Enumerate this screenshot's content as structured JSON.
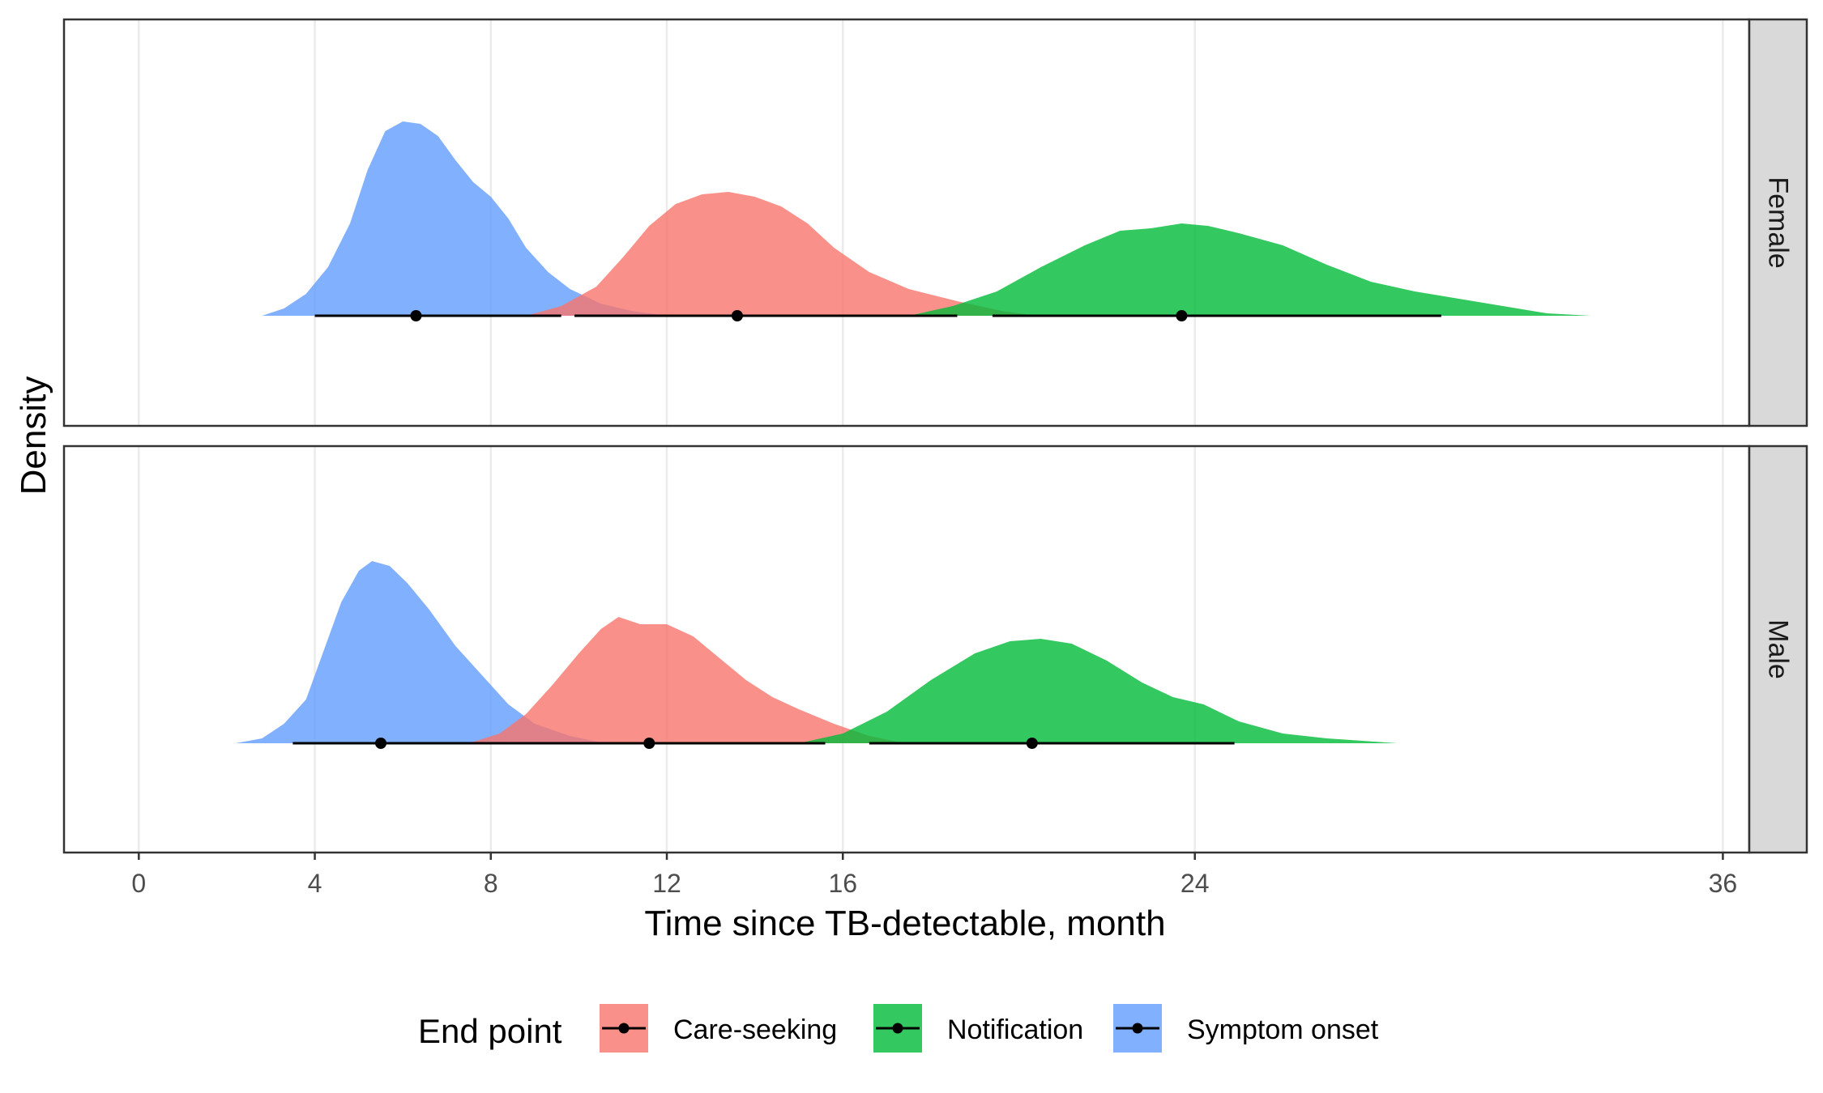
{
  "chart_data": {
    "type": "area",
    "xlabel": "Time since TB-detectable, month",
    "ylabel": "Density",
    "x_ticks": [
      0,
      4,
      8,
      12,
      16,
      24,
      36
    ],
    "xlim": [
      -1.7,
      36.6
    ],
    "grid": true,
    "legend": {
      "title": "End point",
      "placement": "bottom",
      "entries": [
        "Care-seeking",
        "Notification",
        "Symptom onset"
      ]
    },
    "colors": {
      "Care-seeking": "#F8766D",
      "Notification": "#00BA38",
      "Symptom onset": "#619CFF"
    },
    "panels": [
      {
        "facet": "Female",
        "series": [
          {
            "name": "Symptom onset",
            "density": [
              [
                2.8,
                0.0
              ],
              [
                3.3,
                0.03
              ],
              [
                3.8,
                0.09
              ],
              [
                4.3,
                0.2
              ],
              [
                4.8,
                0.38
              ],
              [
                5.2,
                0.6
              ],
              [
                5.6,
                0.76
              ],
              [
                6.0,
                0.8
              ],
              [
                6.4,
                0.79
              ],
              [
                6.8,
                0.74
              ],
              [
                7.2,
                0.64
              ],
              [
                7.6,
                0.55
              ],
              [
                8.0,
                0.49
              ],
              [
                8.4,
                0.4
              ],
              [
                8.8,
                0.28
              ],
              [
                9.3,
                0.18
              ],
              [
                9.8,
                0.11
              ],
              [
                10.5,
                0.05
              ],
              [
                11.2,
                0.02
              ],
              [
                12.0,
                0.0
              ]
            ],
            "median": 6.3,
            "interval": [
              4.0,
              9.6
            ]
          },
          {
            "name": "Care-seeking",
            "density": [
              [
                8.8,
                0.0
              ],
              [
                9.6,
                0.04
              ],
              [
                10.4,
                0.12
              ],
              [
                11.0,
                0.24
              ],
              [
                11.6,
                0.37
              ],
              [
                12.2,
                0.46
              ],
              [
                12.8,
                0.5
              ],
              [
                13.4,
                0.51
              ],
              [
                14.0,
                0.49
              ],
              [
                14.6,
                0.45
              ],
              [
                15.2,
                0.38
              ],
              [
                15.8,
                0.28
              ],
              [
                16.6,
                0.18
              ],
              [
                17.5,
                0.11
              ],
              [
                18.6,
                0.06
              ],
              [
                19.6,
                0.02
              ],
              [
                20.4,
                0.0
              ]
            ],
            "median": 13.6,
            "interval": [
              9.9,
              18.6
            ]
          },
          {
            "name": "Notification",
            "density": [
              [
                17.5,
                0.0
              ],
              [
                18.5,
                0.04
              ],
              [
                19.5,
                0.1
              ],
              [
                20.5,
                0.2
              ],
              [
                21.5,
                0.29
              ],
              [
                22.3,
                0.35
              ],
              [
                23.0,
                0.36
              ],
              [
                23.7,
                0.38
              ],
              [
                24.3,
                0.37
              ],
              [
                25.0,
                0.34
              ],
              [
                26.0,
                0.29
              ],
              [
                27.0,
                0.21
              ],
              [
                28.0,
                0.14
              ],
              [
                29.0,
                0.1
              ],
              [
                30.0,
                0.07
              ],
              [
                31.0,
                0.04
              ],
              [
                32.0,
                0.01
              ],
              [
                33.0,
                0.0
              ]
            ],
            "median": 23.7,
            "interval": [
              19.4,
              29.6
            ]
          }
        ]
      },
      {
        "facet": "Male",
        "series": [
          {
            "name": "Symptom onset",
            "density": [
              [
                2.2,
                0.0
              ],
              [
                2.8,
                0.02
              ],
              [
                3.3,
                0.08
              ],
              [
                3.8,
                0.18
              ],
              [
                4.2,
                0.38
              ],
              [
                4.6,
                0.58
              ],
              [
                5.0,
                0.71
              ],
              [
                5.3,
                0.75
              ],
              [
                5.7,
                0.73
              ],
              [
                6.1,
                0.66
              ],
              [
                6.6,
                0.55
              ],
              [
                7.2,
                0.4
              ],
              [
                7.8,
                0.28
              ],
              [
                8.4,
                0.16
              ],
              [
                9.0,
                0.08
              ],
              [
                9.8,
                0.03
              ],
              [
                10.6,
                0.0
              ]
            ],
            "median": 5.5,
            "interval": [
              3.5,
              8.4
            ]
          },
          {
            "name": "Care-seeking",
            "density": [
              [
                7.5,
                0.0
              ],
              [
                8.2,
                0.04
              ],
              [
                8.8,
                0.12
              ],
              [
                9.4,
                0.24
              ],
              [
                10.0,
                0.37
              ],
              [
                10.5,
                0.47
              ],
              [
                10.9,
                0.52
              ],
              [
                11.4,
                0.49
              ],
              [
                12.0,
                0.49
              ],
              [
                12.6,
                0.44
              ],
              [
                13.2,
                0.35
              ],
              [
                13.8,
                0.26
              ],
              [
                14.4,
                0.19
              ],
              [
                15.0,
                0.14
              ],
              [
                15.8,
                0.08
              ],
              [
                16.6,
                0.03
              ],
              [
                17.4,
                0.0
              ]
            ],
            "median": 11.6,
            "interval": [
              8.4,
              15.6
            ]
          },
          {
            "name": "Notification",
            "density": [
              [
                15.0,
                0.0
              ],
              [
                16.0,
                0.04
              ],
              [
                17.0,
                0.13
              ],
              [
                18.0,
                0.26
              ],
              [
                19.0,
                0.37
              ],
              [
                19.8,
                0.42
              ],
              [
                20.5,
                0.43
              ],
              [
                21.2,
                0.41
              ],
              [
                22.0,
                0.34
              ],
              [
                22.8,
                0.25
              ],
              [
                23.5,
                0.19
              ],
              [
                24.2,
                0.16
              ],
              [
                25.0,
                0.09
              ],
              [
                26.0,
                0.04
              ],
              [
                27.0,
                0.02
              ],
              [
                28.6,
                0.0
              ]
            ],
            "median": 20.3,
            "interval": [
              16.6,
              24.9
            ]
          }
        ]
      }
    ]
  }
}
